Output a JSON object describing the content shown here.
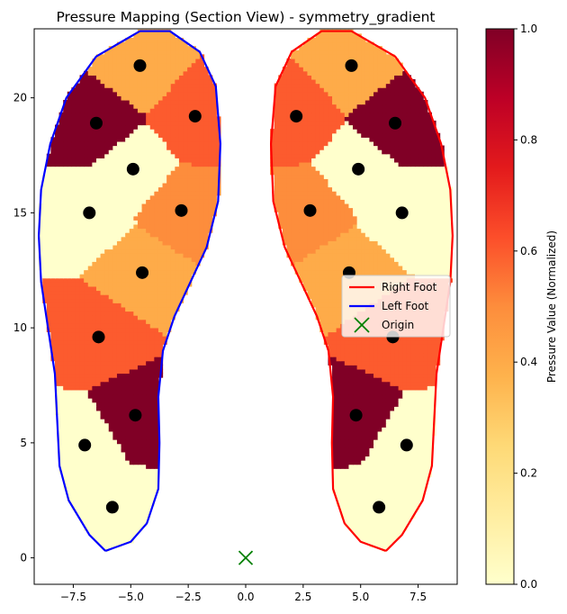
{
  "chart_data": {
    "type": "scatter",
    "title": "Pressure Mapping (Section View) - symmetry_gradient",
    "xlabel": "",
    "ylabel": "",
    "xlim": [
      -9.2,
      9.2
    ],
    "ylim": [
      -1.15,
      23.0
    ],
    "xticks": [
      -7.5,
      -5.0,
      -2.5,
      0.0,
      2.5,
      5.0,
      7.5
    ],
    "xtick_labels": [
      "−7.5",
      "−5.0",
      "−2.5",
      "0.0",
      "2.5",
      "5.0",
      "7.5"
    ],
    "yticks": [
      0,
      5,
      10,
      15,
      20
    ],
    "ytick_labels": [
      "0",
      "5",
      "10",
      "15",
      "20"
    ],
    "grid": false,
    "legend_position": "center-right",
    "legend": [
      {
        "label": "Right Foot",
        "color": "#ff0000",
        "marker": "line"
      },
      {
        "label": "Left Foot",
        "color": "#0000ff",
        "marker": "line"
      },
      {
        "label": "Origin",
        "color": "#008000",
        "marker": "x"
      }
    ],
    "origin": {
      "x": 0,
      "y": 0
    },
    "colorbar": {
      "label": "Pressure Value (Normalized)",
      "range": [
        0,
        1
      ],
      "ticks": [
        0.0,
        0.2,
        0.4,
        0.6,
        0.8,
        1.0
      ],
      "tick_labels": [
        "0.0",
        "0.2",
        "0.4",
        "0.6",
        "0.8",
        "1.0"
      ],
      "colormap": "YlOrRd",
      "stops": [
        "#ffffcc",
        "#ffeda0",
        "#fed976",
        "#feb24c",
        "#fd8d3c",
        "#fc4e2a",
        "#e31a1c",
        "#bd0026",
        "#800026"
      ]
    },
    "sensors_left": [
      {
        "x": -4.6,
        "y": 21.4,
        "value": 0.4
      },
      {
        "x": -6.5,
        "y": 18.9,
        "value": 1.0
      },
      {
        "x": -2.2,
        "y": 19.2,
        "value": 0.6
      },
      {
        "x": -4.9,
        "y": 16.9,
        "value": 0.0
      },
      {
        "x": -6.8,
        "y": 15.0,
        "value": 0.0
      },
      {
        "x": -2.8,
        "y": 15.1,
        "value": 0.5
      },
      {
        "x": -4.5,
        "y": 12.4,
        "value": 0.4
      },
      {
        "x": -6.4,
        "y": 9.6,
        "value": 0.6
      },
      {
        "x": -4.8,
        "y": 6.2,
        "value": 1.0
      },
      {
        "x": -7.0,
        "y": 4.9,
        "value": 0.0
      },
      {
        "x": -5.8,
        "y": 2.2,
        "value": 0.0
      }
    ],
    "sensors_right": [
      {
        "x": 4.6,
        "y": 21.4,
        "value": 0.4
      },
      {
        "x": 6.5,
        "y": 18.9,
        "value": 1.0
      },
      {
        "x": 2.2,
        "y": 19.2,
        "value": 0.6
      },
      {
        "x": 4.9,
        "y": 16.9,
        "value": 0.0
      },
      {
        "x": 6.8,
        "y": 15.0,
        "value": 0.0
      },
      {
        "x": 2.8,
        "y": 15.1,
        "value": 0.5
      },
      {
        "x": 4.5,
        "y": 12.4,
        "value": 0.4
      },
      {
        "x": 6.4,
        "y": 9.6,
        "value": 0.6
      },
      {
        "x": 4.8,
        "y": 6.2,
        "value": 1.0
      },
      {
        "x": 7.0,
        "y": 4.9,
        "value": 0.0
      },
      {
        "x": 5.8,
        "y": 2.2,
        "value": 0.0
      }
    ],
    "outline_left": [
      [
        -6.1,
        0.3
      ],
      [
        -6.8,
        1.0
      ],
      [
        -7.7,
        2.5
      ],
      [
        -8.1,
        4.0
      ],
      [
        -8.2,
        6.0
      ],
      [
        -8.3,
        8.0
      ],
      [
        -8.6,
        10.0
      ],
      [
        -8.9,
        12.0
      ],
      [
        -9.0,
        14.0
      ],
      [
        -8.9,
        16.0
      ],
      [
        -8.5,
        18.0
      ],
      [
        -7.8,
        20.0
      ],
      [
        -6.5,
        21.8
      ],
      [
        -4.6,
        22.9
      ],
      [
        -3.3,
        22.9
      ],
      [
        -2.0,
        22.0
      ],
      [
        -1.3,
        20.5
      ],
      [
        -1.1,
        18.0
      ],
      [
        -1.2,
        15.5
      ],
      [
        -1.7,
        13.5
      ],
      [
        -2.4,
        12.0
      ],
      [
        -3.1,
        10.5
      ],
      [
        -3.6,
        9.0
      ],
      [
        -3.8,
        7.0
      ],
      [
        -3.75,
        5.0
      ],
      [
        -3.8,
        3.0
      ],
      [
        -4.3,
        1.5
      ],
      [
        -5.0,
        0.7
      ],
      [
        -6.1,
        0.3
      ]
    ],
    "outline_right": [
      [
        6.1,
        0.3
      ],
      [
        6.8,
        1.0
      ],
      [
        7.7,
        2.5
      ],
      [
        8.1,
        4.0
      ],
      [
        8.2,
        6.0
      ],
      [
        8.3,
        8.0
      ],
      [
        8.6,
        10.0
      ],
      [
        8.9,
        12.0
      ],
      [
        9.0,
        14.0
      ],
      [
        8.9,
        16.0
      ],
      [
        8.5,
        18.0
      ],
      [
        7.8,
        20.0
      ],
      [
        6.5,
        21.8
      ],
      [
        4.6,
        22.9
      ],
      [
        3.3,
        22.9
      ],
      [
        2.0,
        22.0
      ],
      [
        1.3,
        20.5
      ],
      [
        1.1,
        18.0
      ],
      [
        1.2,
        15.5
      ],
      [
        1.7,
        13.5
      ],
      [
        2.4,
        12.0
      ],
      [
        3.1,
        10.5
      ],
      [
        3.6,
        9.0
      ],
      [
        3.8,
        7.0
      ],
      [
        3.75,
        5.0
      ],
      [
        3.8,
        3.0
      ],
      [
        4.3,
        1.5
      ],
      [
        5.0,
        0.7
      ],
      [
        6.1,
        0.3
      ]
    ]
  }
}
